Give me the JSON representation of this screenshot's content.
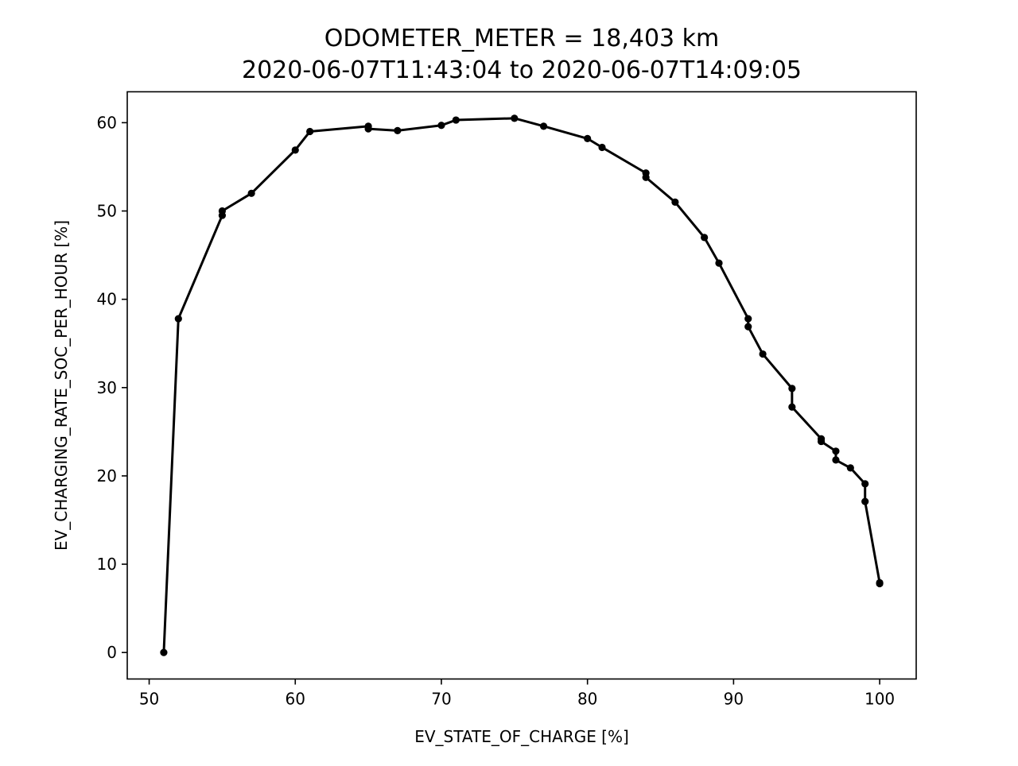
{
  "chart_data": {
    "type": "line",
    "title_line1": "ODOMETER_METER = 18,403 km",
    "title_line2": "2020-06-07T11:43:04 to 2020-06-07T14:09:05",
    "xlabel": "EV_STATE_OF_CHARGE [%]",
    "ylabel": "EV_CHARGING_RATE_SOC_PER_HOUR [%]",
    "xlim": [
      48.5,
      102.5
    ],
    "ylim": [
      -3,
      63.5
    ],
    "xticks": [
      50,
      60,
      70,
      80,
      90,
      100
    ],
    "yticks": [
      0,
      10,
      20,
      30,
      40,
      50,
      60
    ],
    "grid": false,
    "line_color": "#000000",
    "marker": "circle",
    "series": [
      {
        "x": [
          51,
          52,
          55,
          55,
          57,
          60,
          61,
          65,
          65,
          67,
          70,
          71,
          75,
          77,
          80,
          81,
          84,
          84,
          86,
          88,
          89,
          91,
          91,
          92,
          94,
          94,
          96,
          96,
          97,
          97,
          98,
          99,
          99,
          100,
          100
        ],
        "y": [
          0,
          37.8,
          49.5,
          50.0,
          52.0,
          56.9,
          59.0,
          59.6,
          59.3,
          59.1,
          59.7,
          60.3,
          60.5,
          59.6,
          58.2,
          57.2,
          54.3,
          53.8,
          51.0,
          47.0,
          44.1,
          37.8,
          36.9,
          33.8,
          29.9,
          27.8,
          24.2,
          23.9,
          22.8,
          21.8,
          20.9,
          19.1,
          17.1,
          7.9,
          7.8
        ]
      }
    ]
  }
}
